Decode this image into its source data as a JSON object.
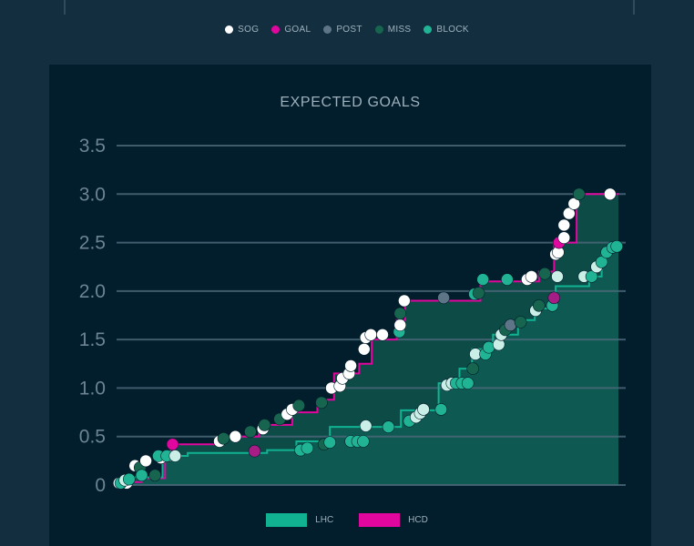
{
  "legend_top": [
    {
      "label": "SOG",
      "color": "#ffffff"
    },
    {
      "label": "GOAL",
      "color": "#e0079f"
    },
    {
      "label": "POST",
      "color": "#5d7587"
    },
    {
      "label": "MISS",
      "color": "#17654f"
    },
    {
      "label": "BLOCK",
      "color": "#20b494"
    }
  ],
  "legend_bottom": [
    {
      "label": "LHC",
      "color": "#11b292"
    },
    {
      "label": "HCD",
      "color": "#e0069e"
    }
  ],
  "chart_data": {
    "type": "line",
    "title": "EXPECTED GOALS",
    "ylim": [
      0,
      3.5
    ],
    "yticks": [
      "0",
      "0.5",
      "1.0",
      "1.5",
      "2.0",
      "2.5",
      "3.0",
      "3.5"
    ],
    "ytick_values": [
      0,
      0.5,
      1.0,
      1.5,
      2.0,
      2.5,
      3.0,
      3.5
    ],
    "xlim": [
      0,
      60
    ],
    "series": [
      {
        "name": "LHC",
        "color": "#11b292",
        "steps": [
          [
            0,
            0
          ],
          [
            1,
            0.05
          ],
          [
            2,
            0.08
          ],
          [
            5.5,
            0.3
          ],
          [
            8.5,
            0.33
          ],
          [
            18,
            0.36
          ],
          [
            21.5,
            0.45
          ],
          [
            25.5,
            0.6
          ],
          [
            34,
            0.77
          ],
          [
            38.5,
            1.05
          ],
          [
            41,
            1.2
          ],
          [
            42.5,
            1.4
          ],
          [
            45,
            1.55
          ],
          [
            48,
            1.7
          ],
          [
            50,
            1.82
          ],
          [
            52.5,
            2.05
          ],
          [
            56.5,
            2.15
          ],
          [
            58,
            2.4
          ],
          [
            59,
            2.46
          ],
          [
            60,
            2.46
          ]
        ],
        "shots": [
          {
            "x": 0.5,
            "y": 0.02,
            "t": "BLOCK"
          },
          {
            "x": 1.0,
            "y": 0.05,
            "t": "SOG"
          },
          {
            "x": 1.5,
            "y": 0.06,
            "t": "BLOCK"
          },
          {
            "x": 3.0,
            "y": 0.1,
            "t": "BLOCK"
          },
          {
            "x": 5.0,
            "y": 0.3,
            "t": "BLOCK"
          },
          {
            "x": 6.0,
            "y": 0.3,
            "t": "BLOCK"
          },
          {
            "x": 7.0,
            "y": 0.3,
            "t": "SOG"
          },
          {
            "x": 16.5,
            "y": 0.35,
            "t": "GOAL"
          },
          {
            "x": 22.0,
            "y": 0.36,
            "t": "BLOCK"
          },
          {
            "x": 22.8,
            "y": 0.38,
            "t": "BLOCK"
          },
          {
            "x": 24.8,
            "y": 0.42,
            "t": "MISS"
          },
          {
            "x": 25.5,
            "y": 0.44,
            "t": "BLOCK"
          },
          {
            "x": 28.0,
            "y": 0.45,
            "t": "BLOCK"
          },
          {
            "x": 28.8,
            "y": 0.45,
            "t": "BLOCK"
          },
          {
            "x": 29.5,
            "y": 0.45,
            "t": "BLOCK"
          },
          {
            "x": 29.8,
            "y": 0.61,
            "t": "SOG"
          },
          {
            "x": 32.5,
            "y": 0.6,
            "t": "BLOCK"
          },
          {
            "x": 35.0,
            "y": 0.66,
            "t": "BLOCK"
          },
          {
            "x": 35.8,
            "y": 0.7,
            "t": "SOG"
          },
          {
            "x": 36.3,
            "y": 0.74,
            "t": "SOG"
          },
          {
            "x": 36.7,
            "y": 0.78,
            "t": "SOG"
          },
          {
            "x": 38.8,
            "y": 0.78,
            "t": "BLOCK"
          },
          {
            "x": 39.5,
            "y": 1.03,
            "t": "SOG"
          },
          {
            "x": 40.1,
            "y": 1.05,
            "t": "SOG"
          },
          {
            "x": 40.6,
            "y": 1.05,
            "t": "BLOCK"
          },
          {
            "x": 41.3,
            "y": 1.05,
            "t": "BLOCK"
          },
          {
            "x": 42.0,
            "y": 1.05,
            "t": "BLOCK"
          },
          {
            "x": 42.6,
            "y": 1.2,
            "t": "MISS"
          },
          {
            "x": 42.9,
            "y": 1.35,
            "t": "SOG"
          },
          {
            "x": 44.1,
            "y": 1.35,
            "t": "BLOCK"
          },
          {
            "x": 44.5,
            "y": 1.42,
            "t": "BLOCK"
          },
          {
            "x": 45.7,
            "y": 1.45,
            "t": "SOG"
          },
          {
            "x": 46.0,
            "y": 1.55,
            "t": "SOG"
          },
          {
            "x": 46.5,
            "y": 1.6,
            "t": "MISS"
          },
          {
            "x": 47.1,
            "y": 1.65,
            "t": "POST"
          },
          {
            "x": 48.3,
            "y": 1.68,
            "t": "MISS"
          },
          {
            "x": 50.1,
            "y": 1.8,
            "t": "SOG"
          },
          {
            "x": 50.5,
            "y": 1.85,
            "t": "MISS"
          },
          {
            "x": 52.1,
            "y": 1.85,
            "t": "BLOCK"
          },
          {
            "x": 52.3,
            "y": 1.93,
            "t": "GOAL"
          },
          {
            "x": 52.7,
            "y": 2.15,
            "t": "SOG"
          },
          {
            "x": 55.9,
            "y": 2.15,
            "t": "SOG"
          },
          {
            "x": 56.8,
            "y": 2.15,
            "t": "BLOCK"
          },
          {
            "x": 57.4,
            "y": 2.25,
            "t": "SOG"
          },
          {
            "x": 58.0,
            "y": 2.3,
            "t": "BLOCK"
          },
          {
            "x": 58.6,
            "y": 2.4,
            "t": "BLOCK"
          },
          {
            "x": 59.3,
            "y": 2.45,
            "t": "BLOCK"
          },
          {
            "x": 59.8,
            "y": 2.46,
            "t": "BLOCK"
          }
        ]
      },
      {
        "name": "HCD",
        "color": "#e0069e",
        "steps": [
          [
            0,
            0
          ],
          [
            1,
            0.03
          ],
          [
            3,
            0.07
          ],
          [
            5.8,
            0.28
          ],
          [
            6.5,
            0.42
          ],
          [
            12.5,
            0.5
          ],
          [
            17,
            0.62
          ],
          [
            21,
            0.75
          ],
          [
            24,
            0.88
          ],
          [
            26,
            1.15
          ],
          [
            29,
            1.25
          ],
          [
            30.5,
            1.5
          ],
          [
            33.5,
            1.7
          ],
          [
            34.5,
            1.9
          ],
          [
            43.5,
            2.1
          ],
          [
            50.5,
            2.2
          ],
          [
            52.3,
            2.5
          ],
          [
            55,
            3.0
          ],
          [
            60,
            3.0
          ]
        ],
        "shots": [
          {
            "x": 0.3,
            "y": 0.02,
            "t": "SOG"
          },
          {
            "x": 1.2,
            "y": 0.02,
            "t": "SOG"
          },
          {
            "x": 2.2,
            "y": 0.2,
            "t": "SOG"
          },
          {
            "x": 2.8,
            "y": 0.18,
            "t": "MISS"
          },
          {
            "x": 3.5,
            "y": 0.25,
            "t": "SOG"
          },
          {
            "x": 4.6,
            "y": 0.1,
            "t": "MISS"
          },
          {
            "x": 5.3,
            "y": 0.28,
            "t": "SOG"
          },
          {
            "x": 6.2,
            "y": 0.3,
            "t": "SOG"
          },
          {
            "x": 6.7,
            "y": 0.42,
            "t": "GOAL"
          },
          {
            "x": 12.3,
            "y": 0.45,
            "t": "SOG"
          },
          {
            "x": 12.8,
            "y": 0.48,
            "t": "MISS"
          },
          {
            "x": 14.2,
            "y": 0.5,
            "t": "SOG"
          },
          {
            "x": 16.0,
            "y": 0.55,
            "t": "MISS"
          },
          {
            "x": 17.5,
            "y": 0.58,
            "t": "SOG"
          },
          {
            "x": 17.7,
            "y": 0.62,
            "t": "MISS"
          },
          {
            "x": 19.5,
            "y": 0.68,
            "t": "MISS"
          },
          {
            "x": 20.4,
            "y": 0.73,
            "t": "SOG"
          },
          {
            "x": 21.0,
            "y": 0.78,
            "t": "SOG"
          },
          {
            "x": 21.8,
            "y": 0.82,
            "t": "MISS"
          },
          {
            "x": 24.5,
            "y": 0.85,
            "t": "MISS"
          },
          {
            "x": 25.7,
            "y": 1.0,
            "t": "SOG"
          },
          {
            "x": 26.7,
            "y": 1.02,
            "t": "SOG"
          },
          {
            "x": 27.0,
            "y": 1.1,
            "t": "SOG"
          },
          {
            "x": 27.8,
            "y": 1.15,
            "t": "SOG"
          },
          {
            "x": 28.0,
            "y": 1.23,
            "t": "SOG"
          },
          {
            "x": 29.6,
            "y": 1.4,
            "t": "SOG"
          },
          {
            "x": 29.8,
            "y": 1.52,
            "t": "SOG"
          },
          {
            "x": 30.4,
            "y": 1.55,
            "t": "SOG"
          },
          {
            "x": 31.8,
            "y": 1.55,
            "t": "SOG"
          },
          {
            "x": 33.8,
            "y": 1.58,
            "t": "BLOCK"
          },
          {
            "x": 33.9,
            "y": 1.65,
            "t": "SOG"
          },
          {
            "x": 33.9,
            "y": 1.77,
            "t": "MISS"
          },
          {
            "x": 34.4,
            "y": 1.9,
            "t": "SOG"
          },
          {
            "x": 39.1,
            "y": 1.93,
            "t": "POST"
          },
          {
            "x": 42.8,
            "y": 1.97,
            "t": "BLOCK"
          },
          {
            "x": 43.3,
            "y": 1.98,
            "t": "MISS"
          },
          {
            "x": 43.8,
            "y": 2.12,
            "t": "BLOCK"
          },
          {
            "x": 46.7,
            "y": 2.12,
            "t": "BLOCK"
          },
          {
            "x": 49.1,
            "y": 2.12,
            "t": "SOG"
          },
          {
            "x": 49.6,
            "y": 2.15,
            "t": "SOG"
          },
          {
            "x": 51.2,
            "y": 2.18,
            "t": "MISS"
          },
          {
            "x": 52.5,
            "y": 2.38,
            "t": "SOG"
          },
          {
            "x": 52.8,
            "y": 2.4,
            "t": "SOG"
          },
          {
            "x": 52.9,
            "y": 2.5,
            "t": "GOAL"
          },
          {
            "x": 53.5,
            "y": 2.55,
            "t": "SOG"
          },
          {
            "x": 53.5,
            "y": 2.68,
            "t": "SOG"
          },
          {
            "x": 54.1,
            "y": 2.8,
            "t": "SOG"
          },
          {
            "x": 54.7,
            "y": 2.9,
            "t": "SOG"
          },
          {
            "x": 55.3,
            "y": 3.0,
            "t": "MISS"
          },
          {
            "x": 59.0,
            "y": 3.0,
            "t": "SOG"
          }
        ]
      }
    ]
  }
}
